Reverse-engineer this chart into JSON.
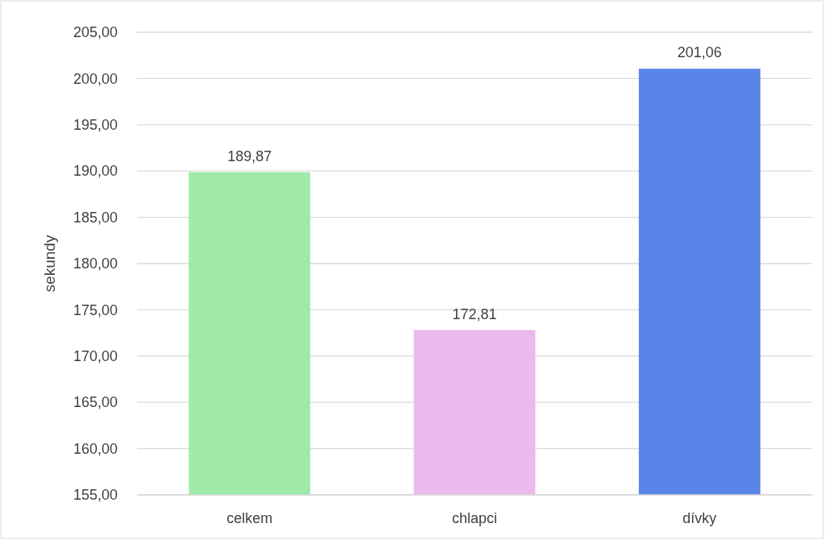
{
  "chart_data": {
    "type": "bar",
    "ylabel": "sekundy",
    "categories": [
      "celkem",
      "chlapci",
      "dívky"
    ],
    "values": [
      189.87,
      172.81,
      201.06
    ],
    "colors": [
      "#9feaa9",
      "#eab9ee",
      "#5b84e8"
    ],
    "value_labels": [
      "189,87",
      "172,81",
      "201,06"
    ],
    "ylim": [
      155,
      205
    ],
    "yticks": [
      {
        "value": 155,
        "label": "155,00"
      },
      {
        "value": 160,
        "label": "160,00"
      },
      {
        "value": 165,
        "label": "165,00"
      },
      {
        "value": 170,
        "label": "170,00"
      },
      {
        "value": 175,
        "label": "175,00"
      },
      {
        "value": 180,
        "label": "180,00"
      },
      {
        "value": 185,
        "label": "185,00"
      },
      {
        "value": 190,
        "label": "190,00"
      },
      {
        "value": 195,
        "label": "195,00"
      },
      {
        "value": 200,
        "label": "200,00"
      },
      {
        "value": 205,
        "label": "205,00"
      }
    ],
    "grid": "y"
  }
}
